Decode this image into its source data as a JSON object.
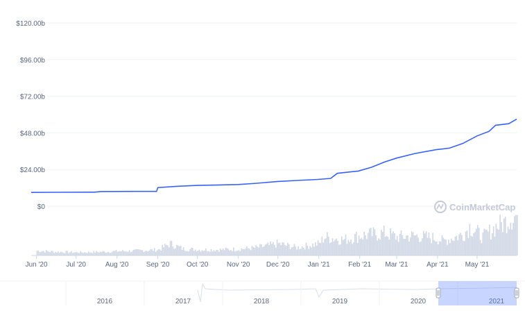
{
  "chart_data": {
    "type": "line",
    "title": "",
    "xlabel": "",
    "ylabel": "",
    "ylim": [
      0,
      120
    ],
    "y_ticks": [
      {
        "value": 0,
        "label": "$0"
      },
      {
        "value": 24,
        "label": "$24.00b"
      },
      {
        "value": 48,
        "label": "$48.00b"
      },
      {
        "value": 72,
        "label": "$72.00b"
      },
      {
        "value": 96,
        "label": "$96.00b"
      },
      {
        "value": 120,
        "label": "$120.00b"
      }
    ],
    "x_ticks": [
      {
        "date": "2020-06-01",
        "label": "Jun '20"
      },
      {
        "date": "2020-07-01",
        "label": "Jul '20"
      },
      {
        "date": "2020-08-01",
        "label": "Aug '20"
      },
      {
        "date": "2020-09-01",
        "label": "Sep '20"
      },
      {
        "date": "2020-10-01",
        "label": "Oct '20"
      },
      {
        "date": "2020-11-01",
        "label": "Nov '20"
      },
      {
        "date": "2020-12-01",
        "label": "Dec '20"
      },
      {
        "date": "2021-01-01",
        "label": "Jan '21"
      },
      {
        "date": "2021-02-01",
        "label": "Feb '21"
      },
      {
        "date": "2021-03-01",
        "label": "Mar '21"
      },
      {
        "date": "2021-04-01",
        "label": "Apr '21"
      },
      {
        "date": "2021-05-01",
        "label": "May '21"
      }
    ],
    "x_range": [
      "2020-05-28",
      "2021-05-31"
    ],
    "series": [
      {
        "color": "#3861fb",
        "points": [
          [
            "2020-05-28",
            9.0
          ],
          [
            "2020-06-15",
            9.1
          ],
          [
            "2020-07-15",
            9.2
          ],
          [
            "2020-07-20",
            9.6
          ],
          [
            "2020-08-15",
            9.7
          ],
          [
            "2020-08-31",
            9.7
          ],
          [
            "2020-09-01",
            12.2
          ],
          [
            "2020-09-15",
            13.0
          ],
          [
            "2020-10-01",
            13.6
          ],
          [
            "2020-10-15",
            13.8
          ],
          [
            "2020-11-01",
            14.2
          ],
          [
            "2020-11-15",
            15.0
          ],
          [
            "2020-12-01",
            16.2
          ],
          [
            "2020-12-15",
            16.8
          ],
          [
            "2020-12-31",
            17.5
          ],
          [
            "2021-01-10",
            18.2
          ],
          [
            "2021-01-15",
            21.5
          ],
          [
            "2021-01-31",
            23.0
          ],
          [
            "2021-02-10",
            25.5
          ],
          [
            "2021-02-20",
            29.0
          ],
          [
            "2021-03-01",
            31.5
          ],
          [
            "2021-03-15",
            34.5
          ],
          [
            "2021-03-31",
            37.0
          ],
          [
            "2021-04-10",
            38.0
          ],
          [
            "2021-04-20",
            41.0
          ],
          [
            "2021-05-01",
            46.0
          ],
          [
            "2021-05-10",
            49.0
          ],
          [
            "2021-05-15",
            53.0
          ],
          [
            "2021-05-25",
            54.0
          ],
          [
            "2021-05-31",
            57.0
          ]
        ]
      }
    ],
    "volume": {
      "color": "#cfd6e4",
      "points": [
        [
          "2020-06-01",
          0.18
        ],
        [
          "2020-06-15",
          0.14
        ],
        [
          "2020-07-01",
          0.12
        ],
        [
          "2020-07-15",
          0.13
        ],
        [
          "2020-08-01",
          0.16
        ],
        [
          "2020-08-15",
          0.18
        ],
        [
          "2020-09-01",
          0.22
        ],
        [
          "2020-09-10",
          0.45
        ],
        [
          "2020-09-20",
          0.25
        ],
        [
          "2020-10-01",
          0.22
        ],
        [
          "2020-10-15",
          0.22
        ],
        [
          "2020-11-01",
          0.24
        ],
        [
          "2020-11-15",
          0.3
        ],
        [
          "2020-12-01",
          0.45
        ],
        [
          "2020-12-15",
          0.3
        ],
        [
          "2021-01-01",
          0.45
        ],
        [
          "2021-01-05",
          0.7
        ],
        [
          "2021-01-20",
          0.6
        ],
        [
          "2021-02-01",
          0.75
        ],
        [
          "2021-02-10",
          0.8
        ],
        [
          "2021-02-20",
          0.85
        ],
        [
          "2021-03-01",
          0.7
        ],
        [
          "2021-03-15",
          0.75
        ],
        [
          "2021-03-31",
          0.65
        ],
        [
          "2021-04-05",
          0.55
        ],
        [
          "2021-04-20",
          0.8
        ],
        [
          "2021-04-25",
          1.1
        ],
        [
          "2021-05-05",
          0.7
        ],
        [
          "2021-05-15",
          1.1
        ],
        [
          "2021-05-20",
          1.2
        ],
        [
          "2021-05-28",
          1.5
        ]
      ]
    },
    "navigator": {
      "labels": [
        "2016",
        "2017",
        "2018",
        "2019",
        "2020",
        "2021"
      ]
    },
    "watermark": "CoinMarketCap",
    "grid": true,
    "legend": "none"
  }
}
